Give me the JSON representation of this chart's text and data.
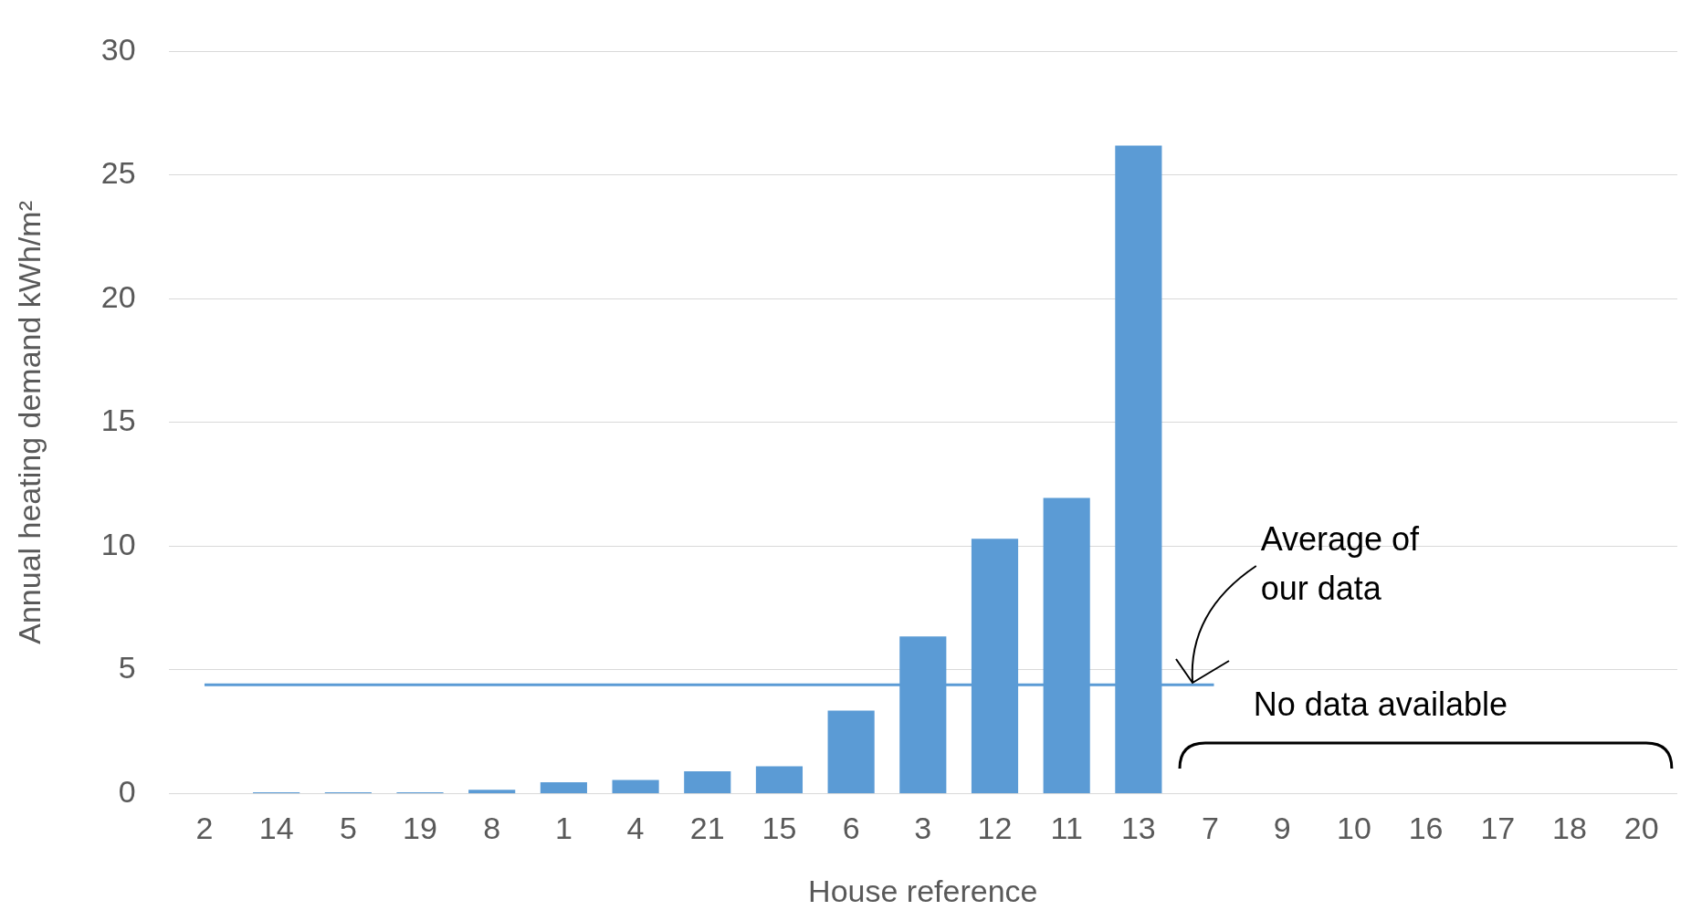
{
  "chart_data": {
    "type": "bar",
    "xlabel": "House reference",
    "ylabel": "Annual heating demand kWh/m²",
    "categories": [
      "2",
      "14",
      "5",
      "19",
      "8",
      "1",
      "4",
      "21",
      "15",
      "6",
      "3",
      "12",
      "11",
      "13",
      "7",
      "9",
      "10",
      "16",
      "17",
      "18",
      "20"
    ],
    "values": [
      0,
      0.05,
      0.05,
      0.05,
      0.15,
      0.46,
      0.55,
      0.9,
      1.1,
      3.35,
      6.35,
      10.3,
      11.95,
      26.2,
      null,
      null,
      null,
      null,
      null,
      null,
      null
    ],
    "color": "#5b9bd5",
    "ylim": [
      0,
      30
    ],
    "yticks": [
      0,
      5,
      10,
      15,
      20,
      25,
      30
    ],
    "grid": "y",
    "legend": false,
    "ref_lines": [
      {
        "axis": "y",
        "value": 4.4,
        "label": "Average of our data",
        "color": "#5b9bd5"
      }
    ],
    "annotations": [
      "No data available"
    ]
  }
}
